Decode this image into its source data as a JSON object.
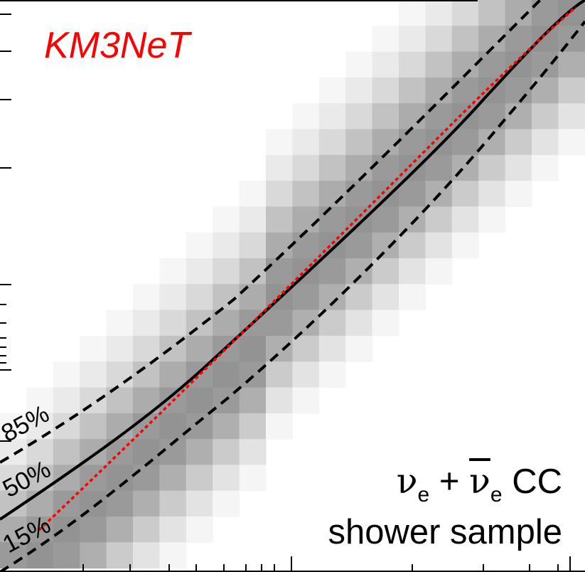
{
  "annotations": {
    "experiment": "KM3NeT",
    "sample_line1_nu": "ν",
    "sample_line1_sub1": "e",
    "sample_line1_plus": "+",
    "sample_line1_nubar": "ν",
    "sample_line1_sub2": "e",
    "sample_line1_cc": "CC",
    "sample_line2": "shower sample"
  },
  "chart_data": {
    "type": "heatmap",
    "title": "",
    "xlabel": "",
    "ylabel": "",
    "colormap": "grayscale",
    "grid": false,
    "color_scale_note": "bin shade encodes relative density; darker = higher",
    "diagonal_bands": {
      "description": "band intensity as a function of row-offset from the diagonal (0 = on diagonal)",
      "offsets": [
        -6,
        -5,
        -4,
        -3,
        -2,
        -1,
        0,
        1,
        2,
        3,
        4,
        5
      ],
      "intensity": [
        0.05,
        0.12,
        0.22,
        0.35,
        0.48,
        0.58,
        0.62,
        0.58,
        0.46,
        0.3,
        0.16,
        0.06
      ]
    },
    "contours": [
      {
        "name": "85%",
        "style": "dashed",
        "color": "#000000"
      },
      {
        "name": "50%",
        "style": "solid",
        "color": "#000000"
      },
      {
        "name": "15%",
        "style": "dashed",
        "color": "#000000"
      }
    ],
    "reference_line": {
      "style": "dotted",
      "color": "#ff0000"
    },
    "colors": {
      "experiment_label": "#ff0000",
      "reference": "#ff0000",
      "contours": "#000000"
    }
  }
}
